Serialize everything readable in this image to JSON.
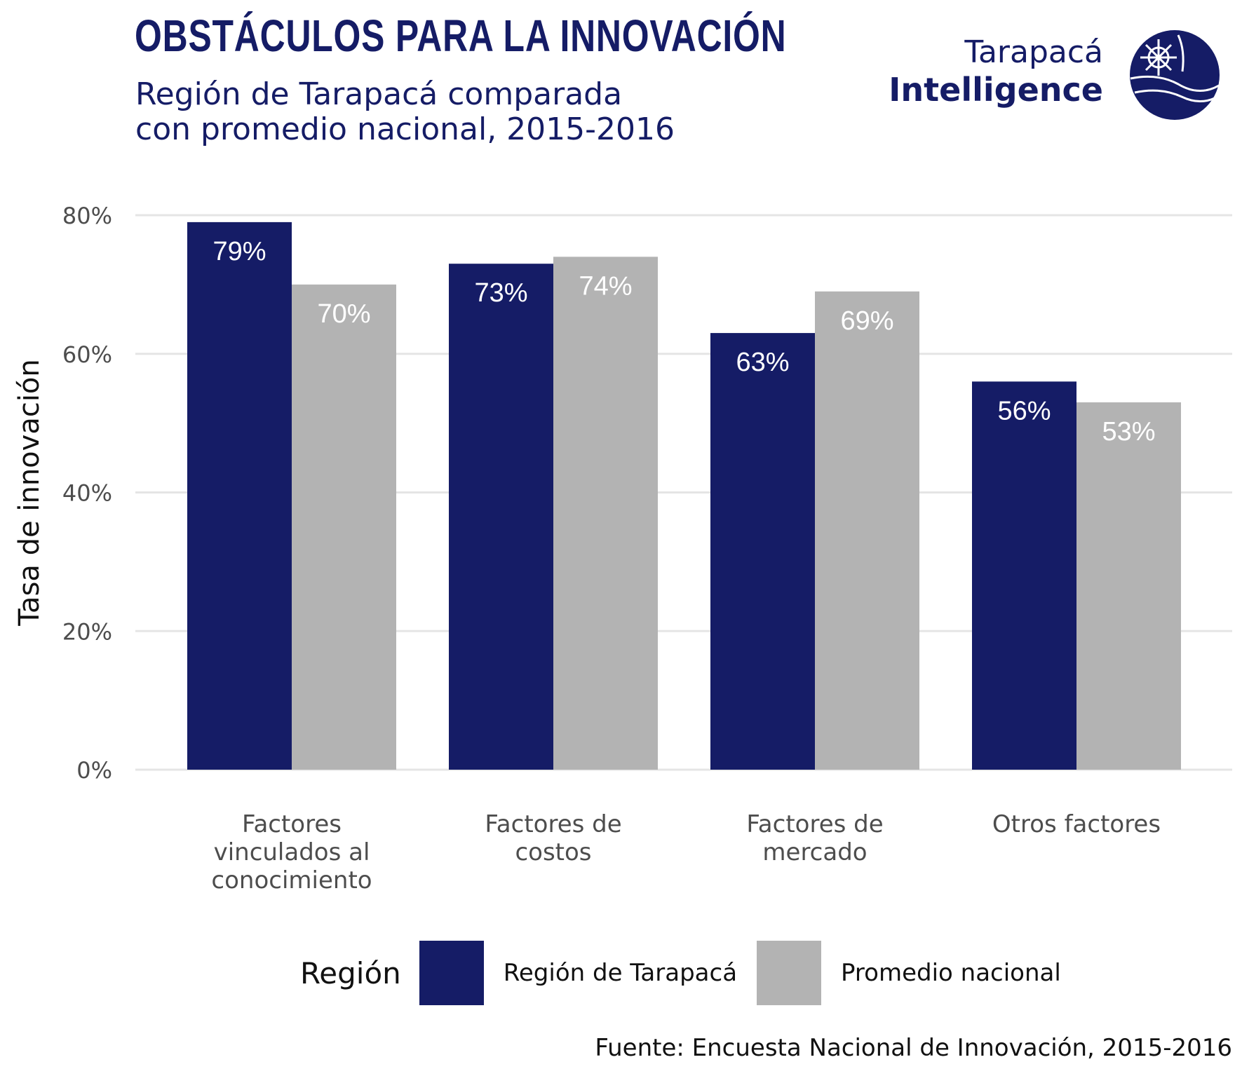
{
  "header": {
    "title": "OBSTÁCULOS PARA LA INNOVACIÓN",
    "subtitle_line1": "Región de Tarapacá comparada",
    "subtitle_line2": "con promedio nacional, 2015-2016"
  },
  "brand": {
    "line1": "Tarapacá",
    "line2": "Intelligence",
    "logo_icon": "globe-logo-icon"
  },
  "legend": {
    "title": "Región",
    "items": [
      "Región de Tarapacá",
      "Promedio nacional"
    ]
  },
  "source": "Fuente: Encuesta Nacional de Innovación, 2015-2016",
  "colors": {
    "tarapaca": "#151c66",
    "nacional": "#b3b3b3",
    "grid": "#e5e5e5"
  },
  "chart_data": {
    "type": "bar",
    "title": "OBSTÁCULOS PARA LA INNOVACIÓN",
    "subtitle": "Región de Tarapacá comparada con promedio nacional, 2015-2016",
    "ylabel": "Tasa de innovación",
    "xlabel": "",
    "ylim": [
      0,
      80
    ],
    "yticks": [
      "0%",
      "20%",
      "40%",
      "60%",
      "80%"
    ],
    "ytick_values": [
      0,
      20,
      40,
      60,
      80
    ],
    "categories": [
      [
        "Factores",
        "vinculados al",
        "conocimiento"
      ],
      [
        "Factores de",
        "costos"
      ],
      [
        "Factores de",
        "mercado"
      ],
      [
        "Otros factores"
      ]
    ],
    "series": [
      {
        "name": "Región de Tarapacá",
        "values": [
          79,
          73,
          63,
          56
        ],
        "labels": [
          "79%",
          "73%",
          "63%",
          "56%"
        ]
      },
      {
        "name": "Promedio nacional",
        "values": [
          70,
          74,
          69,
          53
        ],
        "labels": [
          "70%",
          "74%",
          "69%",
          "53%"
        ]
      }
    ],
    "grid": true,
    "legend_position": "bottom"
  }
}
